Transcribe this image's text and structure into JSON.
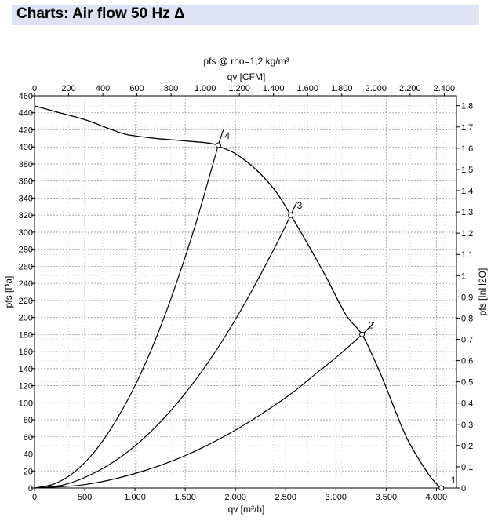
{
  "page": {
    "title": "Charts: Air flow 50 Hz Δ"
  },
  "chart_data": {
    "type": "line",
    "title": "pfs @ rho=1,2 kg/m³",
    "xlabel": "qv [m³/h]",
    "x2label": "qv [CFM]",
    "ylabel": "pfs [Pa]",
    "y2label": "pfs [InH2O]",
    "xlim": [
      0,
      4200
    ],
    "ylim": [
      0,
      460
    ],
    "x2lim": [
      0,
      2472
    ],
    "y2lim": [
      0,
      1.847
    ],
    "x_ticks": [
      0,
      500,
      1000,
      1500,
      2000,
      2500,
      3000,
      3500,
      4000
    ],
    "x_tick_labels": [
      "0",
      "500",
      "1.000",
      "1.500",
      "2.000",
      "2.500",
      "3.000",
      "3.500",
      "4.000"
    ],
    "x2_ticks": [
      0,
      200,
      400,
      600,
      800,
      1000,
      1200,
      1400,
      1600,
      1800,
      2000,
      2200,
      2400
    ],
    "x2_tick_labels": [
      "0",
      "200",
      "400",
      "600",
      "800",
      "1.000",
      "1.200",
      "1.400",
      "1.600",
      "1.800",
      "2.000",
      "2.200",
      "2.400"
    ],
    "y_ticks": [
      0,
      20,
      40,
      60,
      80,
      100,
      120,
      140,
      160,
      180,
      200,
      220,
      240,
      260,
      280,
      300,
      320,
      340,
      360,
      380,
      400,
      420,
      440,
      460
    ],
    "y_tick_labels": [
      "0",
      "20",
      "40",
      "60",
      "80",
      "100",
      "120",
      "140",
      "160",
      "180",
      "200",
      "220",
      "240",
      "260",
      "280",
      "300",
      "320",
      "340",
      "360",
      "380",
      "400",
      "420",
      "440",
      "460"
    ],
    "y2_ticks": [
      0,
      0.1,
      0.2,
      0.3,
      0.4,
      0.5,
      0.6,
      0.7,
      0.8,
      0.9,
      1.0,
      1.1,
      1.2,
      1.3,
      1.4,
      1.5,
      1.6,
      1.7,
      1.8
    ],
    "y2_tick_labels": [
      "0",
      "0,1",
      "0,2",
      "0,3",
      "0,4",
      "0,5",
      "0,6",
      "0,7",
      "0,8",
      "0,9",
      "1",
      "1,1",
      "1,2",
      "1,3",
      "1,4",
      "1,5",
      "1,6",
      "1,7",
      "1,8"
    ],
    "grid": true,
    "fan_curve": {
      "name": "pfs",
      "x": [
        0,
        250,
        500,
        750,
        900,
        1000,
        1200,
        1400,
        1600,
        1700,
        1800,
        1850,
        2000,
        2200,
        2400,
        2550,
        2700,
        2900,
        3100,
        3260,
        3400,
        3500,
        3700,
        3900,
        4000,
        4050
      ],
      "y": [
        448,
        440,
        432,
        421,
        415,
        413,
        410,
        408,
        406,
        405,
        403,
        400,
        392,
        374,
        348,
        320,
        290,
        248,
        203,
        180,
        146,
        118,
        60,
        20,
        5,
        0
      ]
    },
    "system_curves": [
      {
        "name": "4",
        "x": [
          0,
          200,
          400,
          600,
          800,
          1000,
          1200,
          1400,
          1600,
          1830,
          1880
        ],
        "y": [
          0,
          5,
          19,
          43,
          77,
          120,
          173,
          236,
          308,
          402,
          420
        ]
      },
      {
        "name": "3",
        "x": [
          0,
          300,
          600,
          900,
          1200,
          1500,
          1800,
          2100,
          2400,
          2550,
          2610
        ],
        "y": [
          0,
          4,
          18,
          40,
          71,
          111,
          160,
          218,
          284,
          320,
          335
        ]
      },
      {
        "name": "2",
        "x": [
          0,
          500,
          1000,
          1500,
          2000,
          2500,
          2800,
          3000,
          3260,
          3380
        ],
        "y": [
          0,
          4,
          17,
          38,
          68,
          106,
          134,
          153,
          180,
          194
        ]
      }
    ],
    "operating_points": [
      {
        "label": "4",
        "x": 1830,
        "y": 402
      },
      {
        "label": "3",
        "x": 2550,
        "y": 320
      },
      {
        "label": "2",
        "x": 3260,
        "y": 180
      },
      {
        "label": "1",
        "x": 4050,
        "y": 0
      }
    ]
  }
}
